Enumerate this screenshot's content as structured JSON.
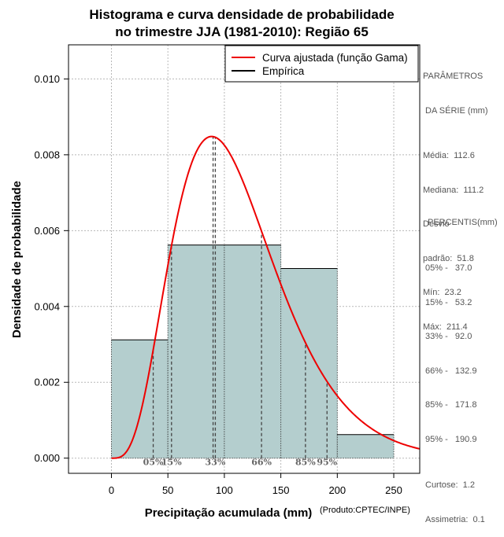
{
  "chart_data": {
    "type": "bar",
    "title_lines": [
      "Histograma e curva densidade de probabilidade",
      "no trimestre JJA (1981-2010): Região 65"
    ],
    "xlabel": "Precipitação acumulada (mm)",
    "ylabel": "Densidade de probabilidade",
    "credit": "(Produto:CPTEC/INPE)",
    "xlim": [
      -38,
      273
    ],
    "ylim": [
      -0.0004,
      0.0109
    ],
    "x_ticks": [
      0,
      50,
      100,
      150,
      200,
      250
    ],
    "y_ticks": [
      0.0,
      0.002,
      0.004,
      0.006,
      0.008,
      0.01
    ],
    "y_tick_labels": [
      "0.000",
      "0.002",
      "0.004",
      "0.006",
      "0.008",
      "0.010"
    ],
    "grid": true,
    "bins": [
      {
        "x0": 0,
        "x1": 50,
        "density": 0.00312
      },
      {
        "x0": 50,
        "x1": 100,
        "density": 0.00562
      },
      {
        "x0": 100,
        "x1": 150,
        "density": 0.00562
      },
      {
        "x0": 150,
        "x1": 200,
        "density": 0.005
      },
      {
        "x0": 200,
        "x1": 250,
        "density": 0.00062
      }
    ],
    "bar_color": "#b4cece",
    "curve": {
      "name": "Curva ajustada (função Gama)",
      "distribution": "gamma",
      "mean": 112.6,
      "sd": 51.8,
      "color": "#ee0000"
    },
    "empirical": {
      "name": "Empírica",
      "color": "#000000"
    },
    "legend_position": "top-right",
    "mode_line": {
      "x": 90
    },
    "percentile_lines": [
      {
        "label": "05%",
        "x": 37.0
      },
      {
        "label": "15%",
        "x": 53.2
      },
      {
        "label": "33%",
        "x": 92.0
      },
      {
        "label": "66%",
        "x": 132.9
      },
      {
        "label": "85%",
        "x": 171.8
      },
      {
        "label": "95%",
        "x": 190.9
      }
    ]
  },
  "stats": {
    "heading": [
      "PARÂMETROS",
      " DA SÉRIE (mm)"
    ],
    "lines": [
      "Média:  112.6",
      "Mediana:  111.2",
      "Desvio",
      "padrão:  51.8",
      "Mín:  23.2",
      "Máx:  211.4"
    ]
  },
  "percentis": {
    "heading": "PERCENTIS(mm)",
    "lines": [
      "05% -   37.0",
      "15% -   53.2",
      "33% -   92.0",
      "66% -   132.9",
      "85% -   171.8",
      "95% -   190.9"
    ]
  },
  "shape": {
    "lines": [
      "Curtose:  1.2",
      "Assimetria:  0.1"
    ]
  }
}
